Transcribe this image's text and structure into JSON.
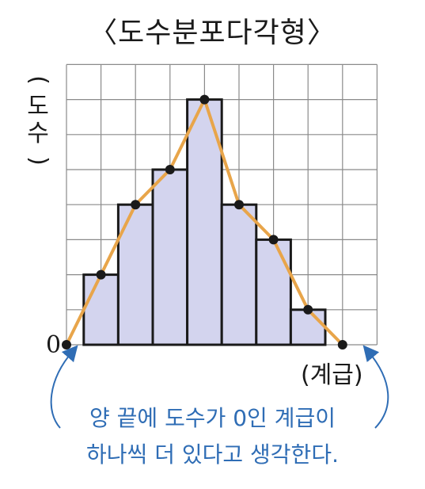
{
  "title": "〈도수분포다각형〉",
  "y_label": [
    "(",
    "도",
    "수",
    ")"
  ],
  "x_label": "(계급)",
  "zero_label": "0",
  "note_lines": [
    "양 끝에 도수가 0인 계급이",
    "하나씩 더 있다고 생각한다."
  ],
  "colors": {
    "bar_fill": "#d3d4ee",
    "bar_stroke": "#1a1a1a",
    "polygon_line": "#e8a54a",
    "grid": "#8a8a8a",
    "note_text": "#2f6db5",
    "arrow": "#2f6db5"
  },
  "chart_data": {
    "type": "bar",
    "title": "〈도수분포다각형〉",
    "xlabel": "(계급)",
    "ylabel": "(도수)",
    "ylim": [
      0,
      8
    ],
    "x_classes": 9,
    "grid": true,
    "values": [
      2,
      4,
      5,
      7,
      4,
      3,
      1
    ],
    "polygon": {
      "type": "line",
      "x": [
        0,
        1,
        2,
        3,
        4,
        5,
        6,
        7,
        8
      ],
      "y": [
        0,
        2,
        4,
        5,
        7,
        4,
        3,
        1,
        0
      ]
    }
  }
}
